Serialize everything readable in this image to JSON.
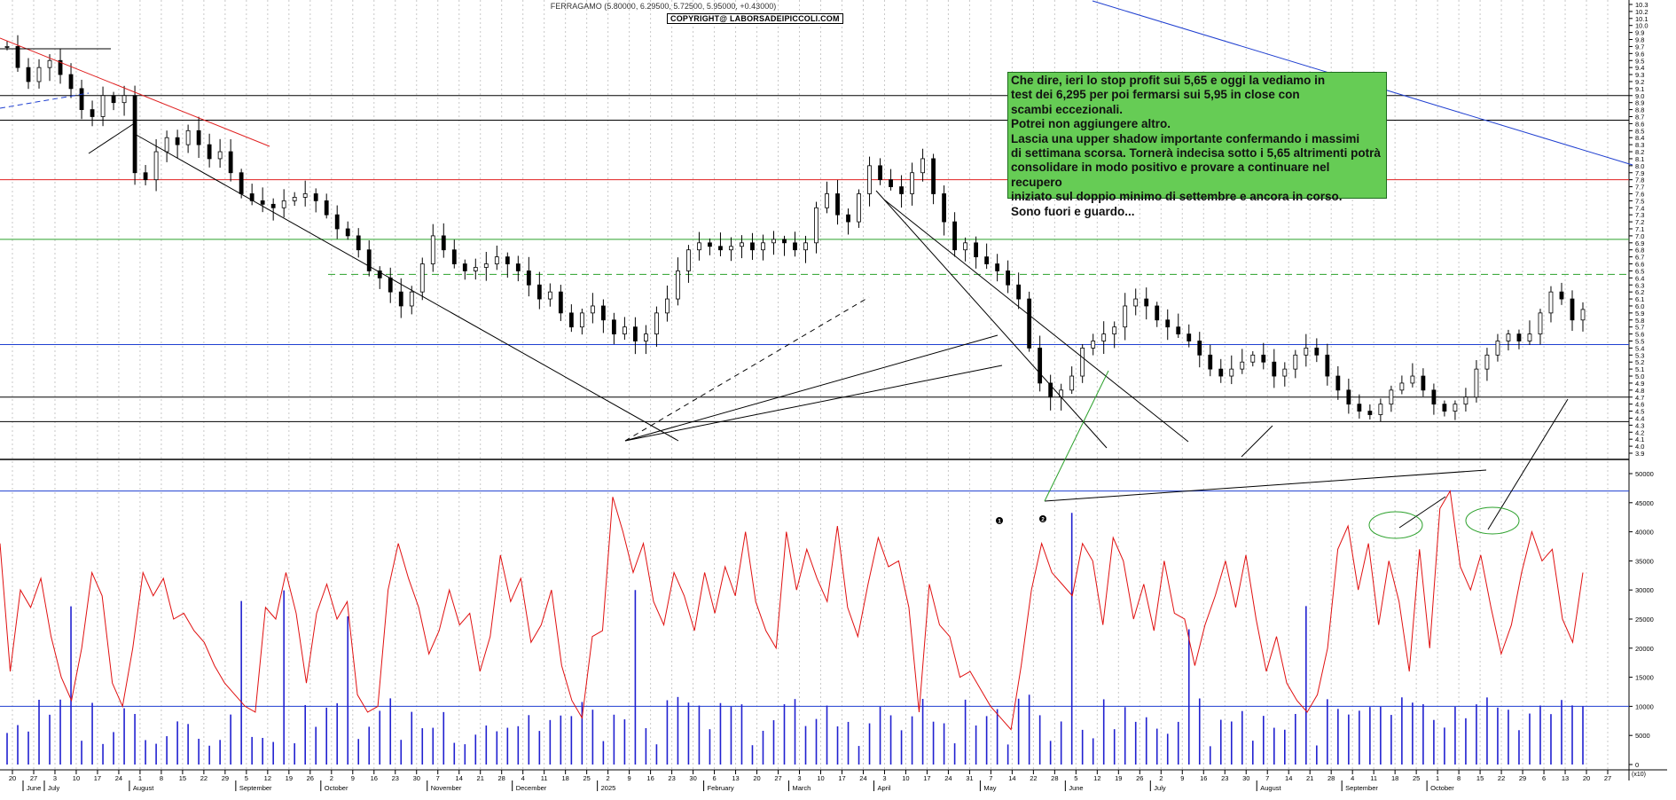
{
  "header": {
    "ticker_line": "FERRAGAMO (5.80000, 6.29500, 5.72500, 5.95000, +0.43000)",
    "copyright": "COPYRIGHT@ LABORSADEIPICCOLI.COM"
  },
  "annotation": {
    "text": "Che dire, ieri lo stop profit sui 5,65 e oggi la vediamo in\ntest dei 6,295 per poi fermarsi sui 5,95 in close con\nscambi eccezionali.\nPotrei non aggiungere altro.\nLascia una upper shadow importante confermando i massimi\ndi settimana scorsa. Tornerà indecisa sotto i 5,65 altrimenti potrà\nconsolidare in modo positivo e provare a continuare nel recupero\niniziato sul doppio minimo di settembre e ancora in corso.\nSono fuori e guardo...",
    "bg_color": "#66cc55"
  },
  "markers": [
    "1",
    "2"
  ],
  "chart_data": {
    "type": "candlestick",
    "symbol": "FERRAGAMO",
    "last_bar": {
      "open": 5.8,
      "high": 6.295,
      "low": 5.725,
      "close": 5.95,
      "change": 0.43
    },
    "price_axis": {
      "min": 3.9,
      "max": 10.3,
      "step": 0.1
    },
    "volume_axis": {
      "min": 0,
      "max": 50000,
      "step": 5000,
      "unit": "(x10)"
    },
    "x_day_ticks": [
      "20",
      "27",
      "3",
      "10",
      "17",
      "24",
      "1",
      "8",
      "15",
      "22",
      "29",
      "5",
      "12",
      "19",
      "26",
      "2",
      "9",
      "16",
      "23",
      "30",
      "7",
      "14",
      "21",
      "28",
      "4",
      "11",
      "18",
      "25",
      "2",
      "9",
      "16",
      "23",
      "30",
      "6",
      "13",
      "20",
      "27",
      "3",
      "10",
      "17",
      "24",
      "3",
      "10",
      "17",
      "24",
      "31",
      "7",
      "14",
      "22",
      "28",
      "5",
      "12",
      "19",
      "26",
      "2",
      "9",
      "16",
      "23",
      "30",
      "7",
      "14",
      "21",
      "28",
      "4",
      "11",
      "18",
      "25",
      "1",
      "8",
      "15",
      "22",
      "29",
      "6",
      "13",
      "20",
      "27"
    ],
    "x_month_labels": [
      "June",
      "July",
      "August",
      "September",
      "October",
      "November",
      "December",
      "2025",
      "February",
      "March",
      "April",
      "May",
      "June",
      "July",
      "August",
      "September",
      "October"
    ],
    "closes": [
      9.7,
      9.4,
      9.2,
      9.4,
      9.5,
      9.3,
      9.1,
      8.8,
      8.7,
      9.0,
      8.9,
      9.0,
      7.9,
      7.8,
      8.2,
      8.4,
      8.3,
      8.5,
      8.3,
      8.1,
      8.2,
      7.9,
      7.6,
      7.5,
      7.45,
      7.4,
      7.5,
      7.55,
      7.6,
      7.5,
      7.3,
      7.1,
      7.0,
      6.8,
      6.5,
      6.4,
      6.2,
      6.0,
      6.2,
      6.6,
      7.0,
      6.8,
      6.6,
      6.5,
      6.55,
      6.6,
      6.7,
      6.6,
      6.5,
      6.3,
      6.1,
      6.2,
      5.9,
      5.7,
      5.9,
      6.0,
      5.8,
      5.6,
      5.7,
      5.5,
      5.6,
      5.9,
      6.1,
      6.5,
      6.8,
      6.9,
      6.85,
      6.8,
      6.85,
      6.9,
      6.8,
      6.9,
      6.95,
      6.9,
      6.8,
      6.9,
      7.4,
      7.6,
      7.3,
      7.2,
      7.6,
      8.0,
      7.8,
      7.7,
      7.6,
      7.9,
      8.1,
      7.6,
      7.2,
      6.8,
      6.9,
      6.7,
      6.6,
      6.5,
      6.3,
      6.1,
      5.4,
      4.9,
      4.7,
      4.8,
      5.0,
      5.4,
      5.5,
      5.6,
      5.7,
      6.0,
      6.1,
      6.0,
      5.8,
      5.7,
      5.6,
      5.5,
      5.3,
      5.1,
      5.0,
      5.1,
      5.2,
      5.3,
      5.2,
      5.0,
      5.1,
      5.3,
      5.4,
      5.3,
      5.0,
      4.8,
      4.6,
      4.5,
      4.45,
      4.6,
      4.8,
      4.9,
      5.0,
      4.8,
      4.6,
      4.5,
      4.6,
      4.7,
      5.1,
      5.3,
      5.5,
      5.6,
      5.5,
      5.6,
      5.9,
      6.2,
      6.1,
      5.8,
      5.95
    ],
    "volume_ma": [
      38000,
      16000,
      30000,
      27000,
      32000,
      22000,
      15000,
      11000,
      20000,
      33000,
      29000,
      14000,
      10000,
      20000,
      33000,
      29000,
      32000,
      25000,
      26000,
      23000,
      21000,
      17000,
      14000,
      12000,
      10000,
      9000,
      27000,
      25000,
      33000,
      26000,
      14000,
      26000,
      31000,
      25000,
      28000,
      12000,
      9000,
      10000,
      30000,
      38000,
      32000,
      27000,
      19000,
      23000,
      30000,
      24000,
      26000,
      16000,
      22000,
      36000,
      28000,
      32000,
      21000,
      24000,
      30000,
      17000,
      11000,
      8000,
      22000,
      23000,
      46000,
      40000,
      33000,
      38000,
      28000,
      24000,
      33000,
      29000,
      23000,
      33000,
      26000,
      34000,
      29000,
      40000,
      28000,
      23000,
      20000,
      40000,
      30000,
      37000,
      32000,
      28000,
      41000,
      27000,
      22000,
      31000,
      39000,
      34000,
      35000,
      27000,
      9000,
      31000,
      24000,
      22000,
      15000,
      16000,
      13000,
      10000,
      8000,
      6000,
      17000,
      30000,
      38000,
      33000,
      31000,
      29000,
      38000,
      35000,
      24000,
      39000,
      35000,
      25000,
      31000,
      23000,
      35000,
      26000,
      25000,
      17000,
      24000,
      29000,
      35000,
      27000,
      36000,
      25000,
      16000,
      22000,
      14000,
      11000,
      9000,
      12000,
      20000,
      37000,
      41000,
      30000,
      38000,
      24000,
      35000,
      28000,
      16000,
      37000,
      20000,
      44000,
      47000,
      34000,
      30000,
      36000,
      27000,
      19000,
      24000,
      33000,
      40000,
      35000,
      37000,
      25000,
      21000,
      33000
    ],
    "horizontal_levels": [
      {
        "value": 9.0,
        "color": "#000000",
        "style": "solid"
      },
      {
        "value": 8.65,
        "color": "#000000",
        "style": "solid"
      },
      {
        "value": 7.8,
        "color": "#e02020",
        "style": "solid"
      },
      {
        "value": 6.95,
        "color": "#2aa02a",
        "style": "solid"
      },
      {
        "value": 6.45,
        "color": "#2aa02a",
        "style": "dashed"
      },
      {
        "value": 5.45,
        "color": "#1f3fd0",
        "style": "solid"
      },
      {
        "value": 4.7,
        "color": "#000000",
        "style": "solid"
      },
      {
        "value": 4.35,
        "color": "#000000",
        "style": "solid"
      }
    ],
    "volume_levels": [
      {
        "value": 47000,
        "color": "#1f3fd0"
      },
      {
        "value": 10000,
        "color": "#1f3fd0"
      }
    ],
    "series_colors": {
      "candles": "#000000",
      "volume_bars": "#2020d0",
      "volume_line": "#e01010"
    },
    "grid": true
  }
}
